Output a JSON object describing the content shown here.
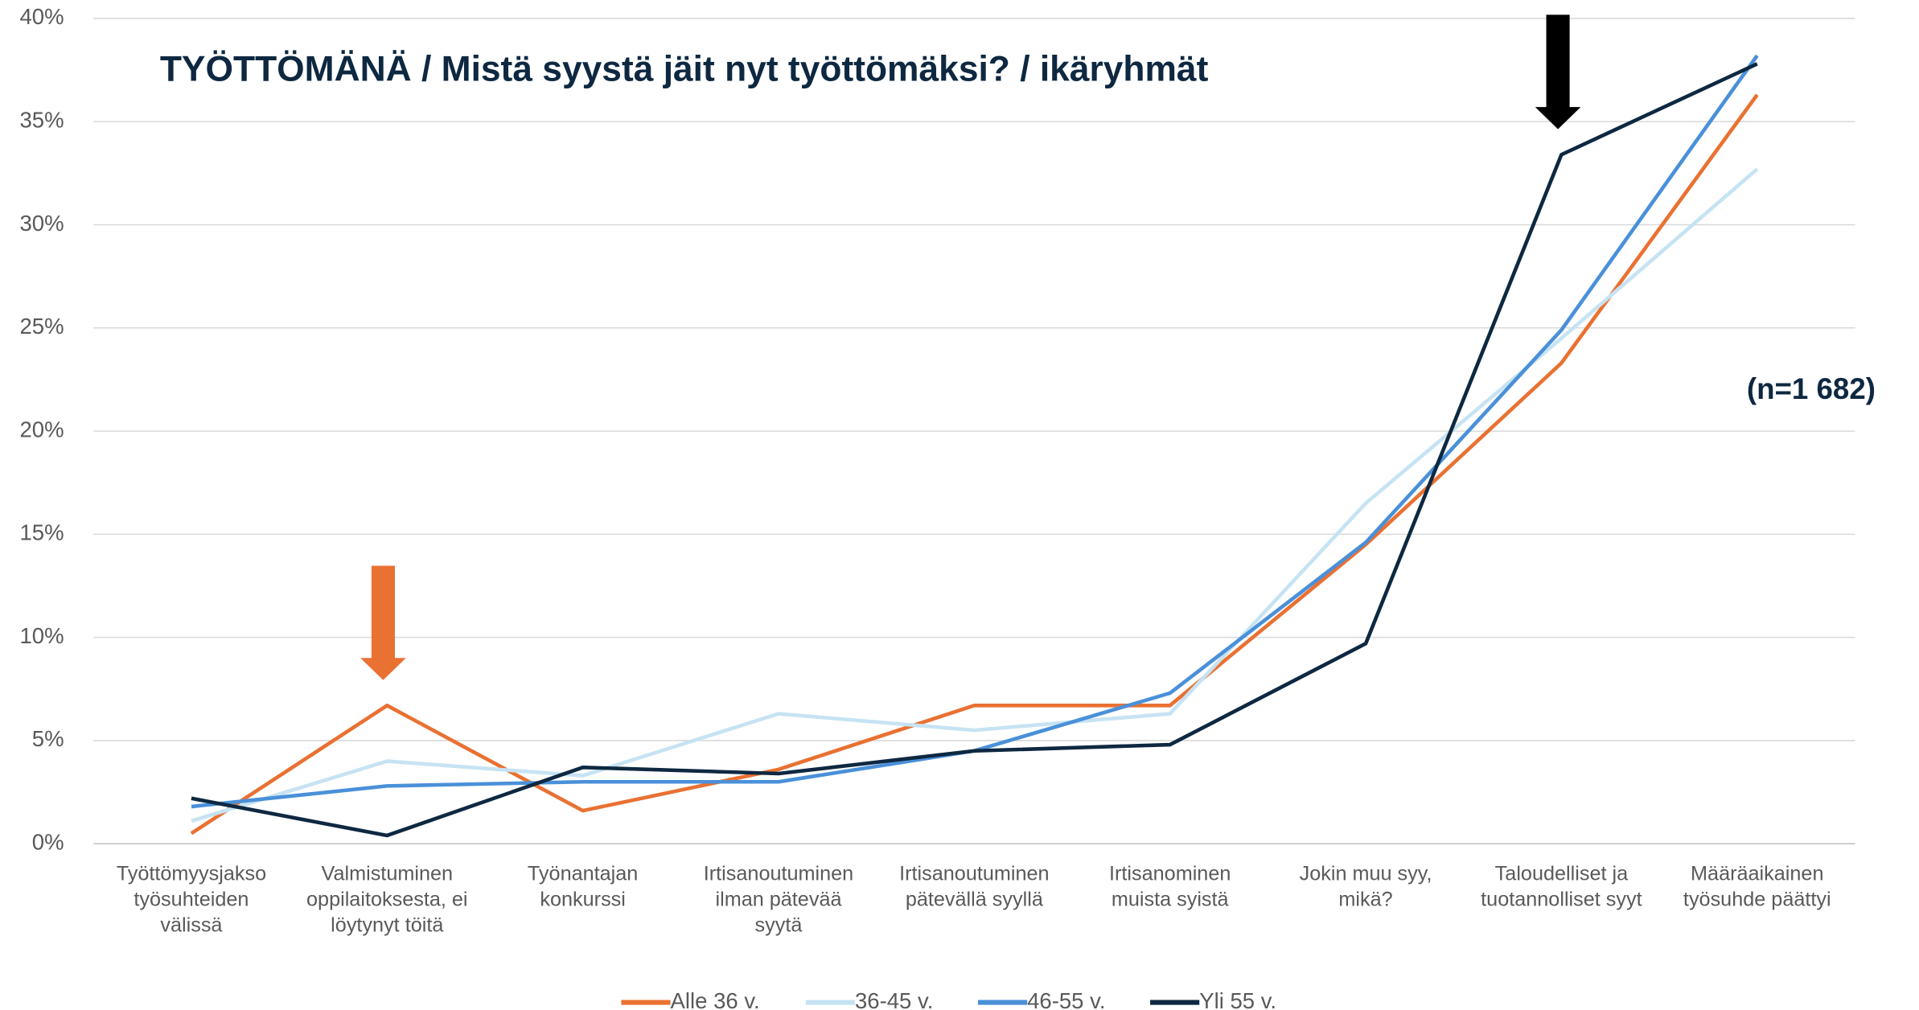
{
  "chart_data": {
    "type": "line",
    "title": "TYÖTTÖMÄNÄ / Mistä syystä jäit nyt työttömäksi? / ikäryhmät",
    "annotation": "(n=1 682)",
    "categories": [
      "Työttömyysjakso\ntyösuhteiden\nvälissä",
      "Valmistuminen\noppilaitoksesta, ei\nlöytynyt töitä",
      "Työnantajan\nkonkurssi",
      "Irtisanoutuminen\nilman pätevää\nsyytä",
      "Irtisanoutuminen\npätevällä syyllä",
      "Irtisanominen\nmuista syistä",
      "Jokin muu syy,\nmikä?",
      "Taloudelliset ja\ntuotannolliset syyt",
      "Määräaikainen\ntyösuhde päättyi"
    ],
    "series": [
      {
        "name": "Alle 36 v.",
        "color": "#e97132",
        "values": [
          0.5,
          6.7,
          1.6,
          3.6,
          6.7,
          6.7,
          14.5,
          23.3,
          36.3
        ]
      },
      {
        "name": "36-45 v.",
        "color": "#c6e3f3",
        "values": [
          1.1,
          4.0,
          3.3,
          6.3,
          5.5,
          6.3,
          16.5,
          24.5,
          32.7
        ]
      },
      {
        "name": "46-55 v.",
        "color": "#4a90d9",
        "values": [
          1.8,
          2.8,
          3.0,
          3.0,
          4.5,
          7.3,
          14.6,
          24.9,
          38.2
        ]
      },
      {
        "name": "Yli 55 v.",
        "color": "#0e2841",
        "values": [
          2.2,
          0.4,
          3.7,
          3.4,
          4.5,
          4.8,
          9.7,
          33.4,
          37.8
        ]
      }
    ],
    "ylim": [
      0,
      40
    ],
    "yticks": [
      {
        "value": 0,
        "label": "0%"
      },
      {
        "value": 5,
        "label": "5%"
      },
      {
        "value": 10,
        "label": "10%"
      },
      {
        "value": 15,
        "label": "15%"
      },
      {
        "value": 20,
        "label": "20%"
      },
      {
        "value": 25,
        "label": "25%"
      },
      {
        "value": 30,
        "label": "30%"
      },
      {
        "value": 35,
        "label": "35%"
      },
      {
        "value": 40,
        "label": "40%"
      }
    ],
    "grid": true,
    "legend": "bottom"
  }
}
